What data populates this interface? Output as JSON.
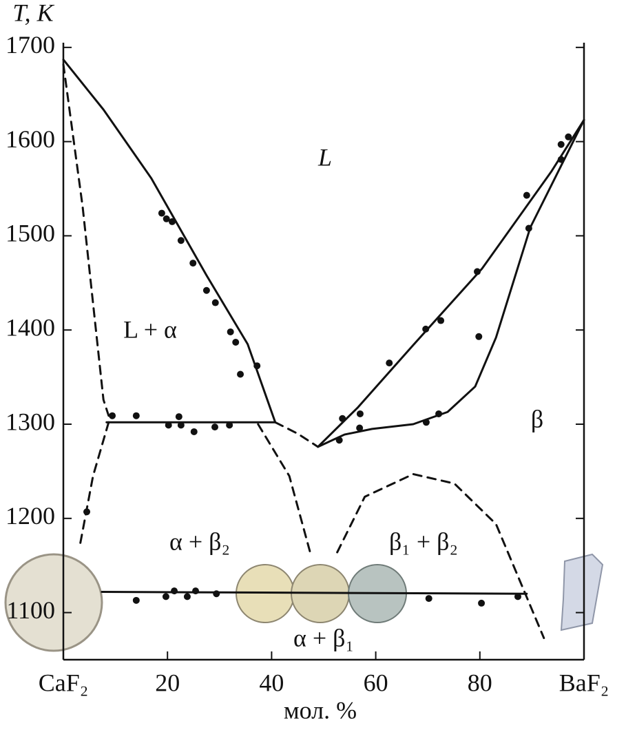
{
  "chart_data": {
    "type": "line",
    "x_label": "мол. %",
    "y_label": "T, K",
    "xlim": [
      0,
      100
    ],
    "ylim": [
      1050,
      1705
    ],
    "xticks": [
      {
        "value": 0,
        "label": "CaF₂"
      },
      20,
      40,
      60,
      80,
      {
        "value": 100,
        "label": "BaF₂"
      }
    ],
    "yticks": [
      1100,
      1200,
      1300,
      1400,
      1500,
      1600,
      1700
    ],
    "annotations": [
      "L",
      "L + α",
      "β",
      "α + β₂",
      "β₁ + β₂",
      "α + β₁"
    ],
    "series": [
      {
        "line": "solid",
        "marker": false,
        "color": "#111111",
        "x": [
          0,
          7.7,
          16.9,
          27.5,
          35.4,
          40.7
        ],
        "values": [
          1687,
          1634,
          1561,
          1458,
          1385,
          1302
        ]
      },
      {
        "line": "solid",
        "marker": false,
        "color": "#111111",
        "x": [
          8.3,
          40.7
        ],
        "values": [
          1302,
          1302
        ]
      },
      {
        "line": "solid",
        "marker": false,
        "color": "#111111",
        "x": [
          48.9,
          56.6,
          67.2,
          80.4,
          93.7,
          100
        ],
        "values": [
          1276,
          1318,
          1384,
          1465,
          1568,
          1623
        ]
      },
      {
        "line": "solid",
        "marker": false,
        "color": "#111111",
        "x": [
          48.9,
          54,
          59.3,
          67.2,
          73.8,
          79.1,
          83.1,
          89.7,
          100
        ],
        "values": [
          1276,
          1289,
          1295,
          1300,
          1313,
          1340,
          1392,
          1509,
          1623
        ]
      },
      {
        "line": "solid",
        "marker": false,
        "color": "#111111",
        "x": [
          7.4,
          89
        ],
        "values": [
          1122,
          1120
        ]
      },
      {
        "line": "dashed",
        "marker": false,
        "color": "#111111",
        "x": [
          0,
          3.7,
          7.7,
          8.7
        ],
        "values": [
          1682,
          1531,
          1326,
          1309
        ]
      },
      {
        "line": "dashed",
        "marker": false,
        "color": "#111111",
        "x": [
          8.7,
          5.7,
          3.2
        ],
        "values": [
          1302,
          1245,
          1172
        ]
      },
      {
        "line": "dashed",
        "marker": false,
        "color": "#111111",
        "x": [
          37.4,
          43.4,
          47.4
        ],
        "values": [
          1300,
          1245,
          1164
        ]
      },
      {
        "line": "dashed",
        "marker": false,
        "color": "#111111",
        "x": [
          40.7,
          45,
          48.9
        ],
        "values": [
          1302,
          1290,
          1276
        ]
      },
      {
        "line": "dashed",
        "marker": false,
        "color": "#111111",
        "x": [
          52.6,
          57.9,
          67.2,
          75.1,
          83.1,
          92.3
        ],
        "values": [
          1164,
          1223,
          1247,
          1237,
          1194,
          1073
        ]
      },
      {
        "line": "none",
        "marker": true,
        "color": "#111111",
        "x": [
          18.9,
          19.8,
          20.9,
          22.6,
          24.9,
          27.5,
          29.2,
          32.1,
          33.1,
          34.0,
          37.2,
          9.4,
          14.0,
          20.2,
          22.2,
          22.6,
          25.1,
          29.1,
          31.9,
          4.5,
          53.6,
          53.0,
          57.0,
          56.9,
          62.6,
          69.6,
          72.5,
          69.7,
          72.1,
          79.5,
          79.8,
          89.0,
          89.4,
          95.6,
          95.6,
          97.0,
          14.0,
          19.7,
          21.3,
          23.8,
          25.4,
          29.4,
          70.2,
          80.3,
          87.3
        ],
        "values": [
          1524,
          1518,
          1515,
          1495,
          1471,
          1442,
          1429,
          1398,
          1387,
          1353,
          1362,
          1309,
          1309,
          1299,
          1308,
          1299,
          1292,
          1297,
          1299,
          1207,
          1306,
          1283,
          1311,
          1296,
          1365,
          1401,
          1410,
          1302,
          1311,
          1462,
          1393,
          1543,
          1508,
          1597,
          1581,
          1605,
          1113,
          1117,
          1123,
          1117,
          1123,
          1120,
          1115,
          1110,
          1117
        ]
      }
    ]
  }
}
